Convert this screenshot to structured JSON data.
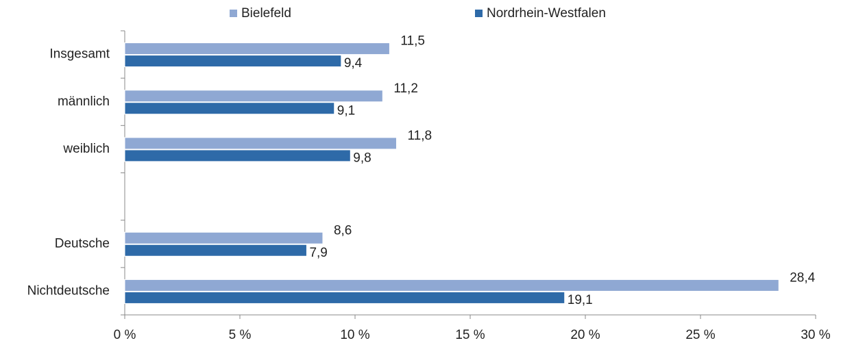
{
  "chart_data": {
    "type": "bar",
    "orientation": "horizontal",
    "categories": [
      "Insgesamt",
      "männlich",
      "weiblich",
      null,
      "Deutsche",
      "Nichtdeutsche"
    ],
    "series": [
      {
        "name": "Bielefeld",
        "color": "#8fa8d3",
        "values": [
          11.5,
          11.2,
          11.8,
          null,
          8.6,
          28.4
        ],
        "value_labels": [
          "11,5",
          "11,2",
          "11,8",
          null,
          "8,6",
          "28,4"
        ]
      },
      {
        "name": "Nordrhein-Westfalen",
        "color": "#2e6aa8",
        "values": [
          9.4,
          9.1,
          9.8,
          null,
          7.9,
          19.1
        ],
        "value_labels": [
          "9,4",
          "9,1",
          "9,8",
          null,
          "7,9",
          "19,1"
        ]
      }
    ],
    "xlim": [
      0,
      30
    ],
    "xticks": [
      {
        "value": 0,
        "label": "0 %"
      },
      {
        "value": 5,
        "label": "5 %"
      },
      {
        "value": 10,
        "label": "10 %"
      },
      {
        "value": 15,
        "label": "15 %"
      },
      {
        "value": 20,
        "label": "20 %"
      },
      {
        "value": 25,
        "label": "25 %"
      },
      {
        "value": 30,
        "label": "30 %"
      }
    ],
    "legend": "top"
  }
}
